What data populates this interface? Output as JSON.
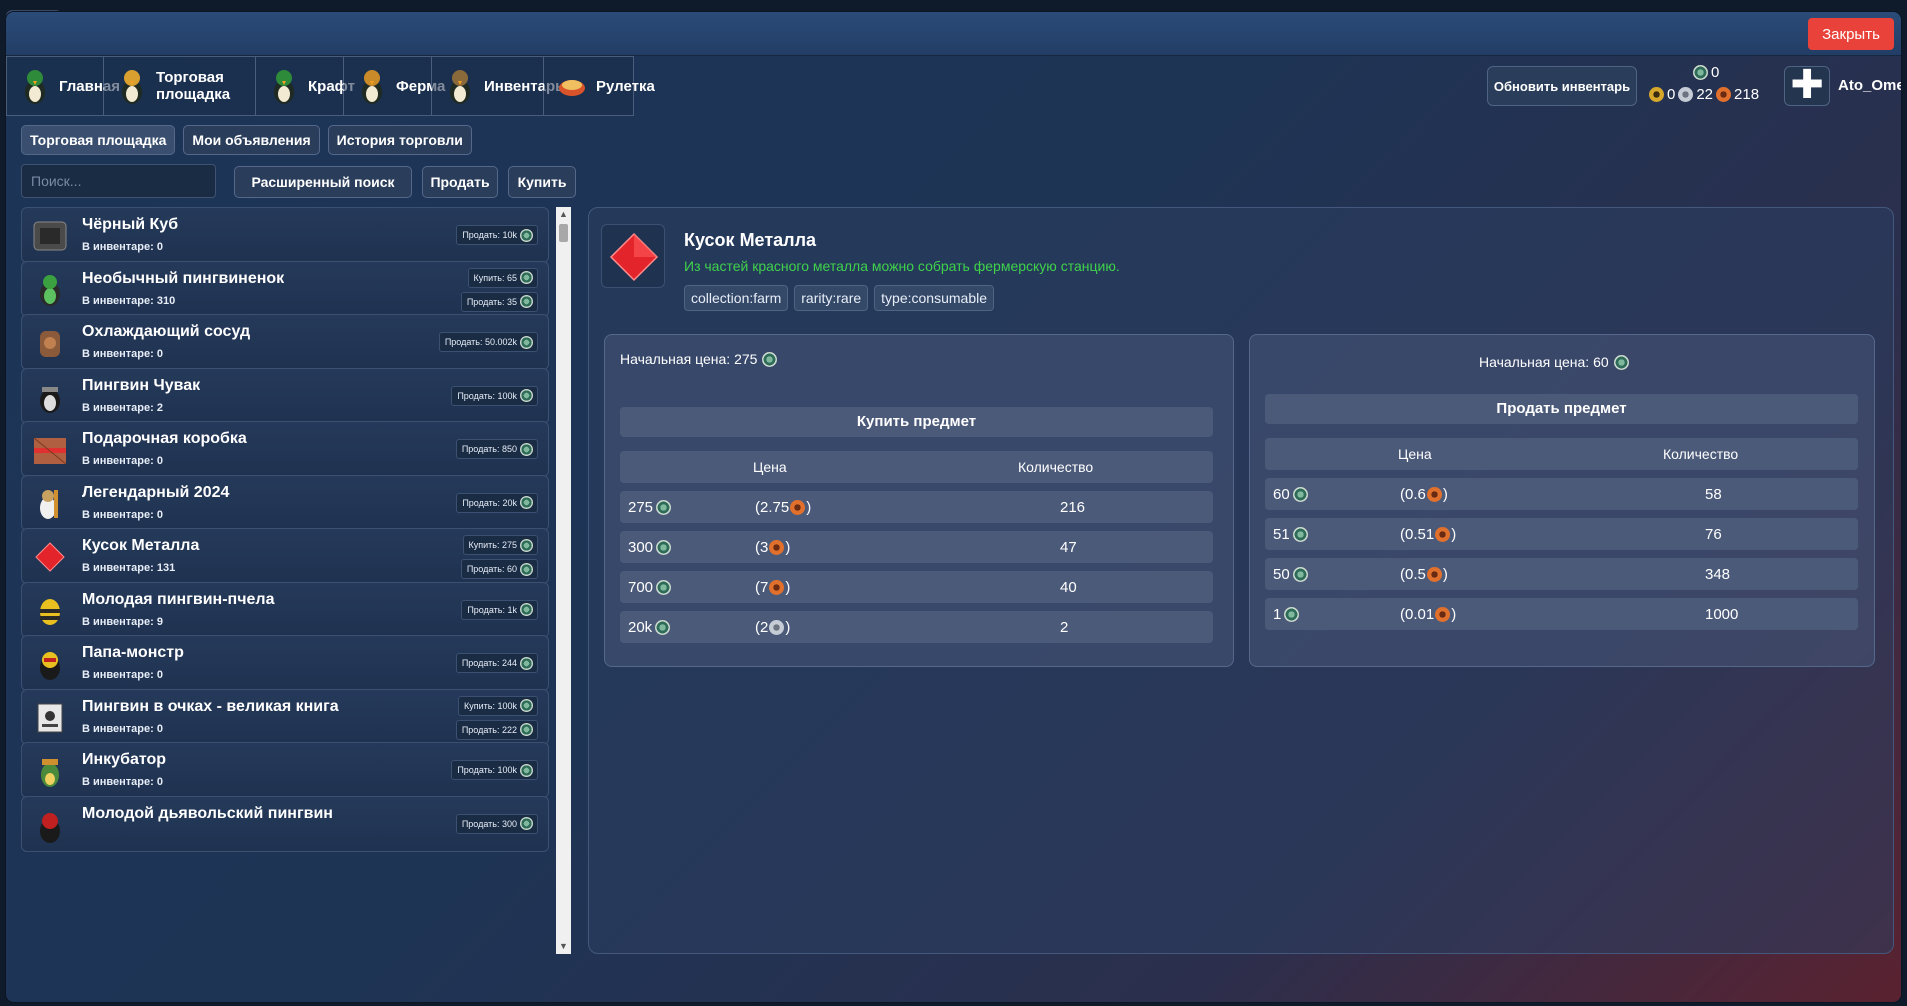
{
  "window": {
    "close_label": "Закрыть"
  },
  "nav": {
    "tabs": [
      {
        "label": "Главная",
        "icon": "penguin-home-icon"
      },
      {
        "label": "Торговая площадка",
        "icon": "penguin-market-icon"
      },
      {
        "label": "Крафт",
        "icon": "penguin-craft-icon"
      },
      {
        "label": "Ферма",
        "icon": "penguin-farm-icon"
      },
      {
        "label": "Инвентарь",
        "icon": "penguin-inventory-icon"
      },
      {
        "label": "Рулетка",
        "icon": "roulette-icon"
      }
    ],
    "refresh_label": "Обновить инвентарь",
    "currency": {
      "main": "0",
      "gold": "0",
      "silver": "22",
      "bronze": "218"
    },
    "username": "Ato_Ome"
  },
  "subtabs": [
    "Торговая площадка",
    "Мои объявления",
    "История торговли"
  ],
  "search": {
    "placeholder": "Поиск...",
    "advanced_label": "Расширенный поиск",
    "sell_label": "Продать",
    "buy_label": "Купить"
  },
  "items": [
    {
      "name": "Чёрный Куб",
      "inventory": "В инвентаре: 0",
      "buy": null,
      "sell": "Продать: 10k"
    },
    {
      "name": "Необычный пингвиненок",
      "inventory": "В инвентаре: 310",
      "buy": "Купить: 65",
      "sell": "Продать: 35"
    },
    {
      "name": "Охлаждающий сосуд",
      "inventory": "В инвентаре: 0",
      "buy": null,
      "sell": "Продать: 50.002k"
    },
    {
      "name": "Пингвин Чувак",
      "inventory": "В инвентаре: 2",
      "buy": null,
      "sell": "Продать: 100k"
    },
    {
      "name": "Подарочная коробка",
      "inventory": "В инвентаре: 0",
      "buy": null,
      "sell": "Продать: 850"
    },
    {
      "name": "Легендарный 2024",
      "inventory": "В инвентаре: 0",
      "buy": null,
      "sell": "Продать: 20k"
    },
    {
      "name": "Кусок Металла",
      "inventory": "В инвентаре: 131",
      "buy": "Купить: 275",
      "sell": "Продать: 60"
    },
    {
      "name": "Молодая пингвин-пчела",
      "inventory": "В инвентаре: 9",
      "buy": null,
      "sell": "Продать: 1k"
    },
    {
      "name": "Папа-монстр",
      "inventory": "В инвентаре: 0",
      "buy": null,
      "sell": "Продать: 244"
    },
    {
      "name": "Пингвин в очках - великая книга",
      "inventory": "В инвентаре: 0",
      "buy": "Купить: 100k",
      "sell": "Продать: 222"
    },
    {
      "name": "Инкубатор",
      "inventory": "В инвентаре: 0",
      "buy": null,
      "sell": "Продать: 100k"
    },
    {
      "name": "Молодой дьявольский пингвин",
      "inventory": "",
      "buy": null,
      "sell": "Продать: 300"
    }
  ],
  "detail": {
    "title": "Кусок Металла",
    "description": "Из частей красного металла можно собрать фермерскую станцию.",
    "tags": [
      "collection:farm",
      "rarity:rare",
      "type:consumable"
    ],
    "buy_panel": {
      "start_price_label": "Начальная цена: 275",
      "action_label": "Купить предмет",
      "col_price": "Цена",
      "col_qty": "Количество",
      "rows": [
        {
          "price": "275",
          "alt": "(2.75",
          "alt_coin": "bronze",
          "qty": "216"
        },
        {
          "price": "300",
          "alt": "(3",
          "alt_coin": "bronze",
          "qty": "47"
        },
        {
          "price": "700",
          "alt": "(7",
          "alt_coin": "bronze",
          "qty": "40"
        },
        {
          "price": "20k",
          "alt": "(2",
          "alt_coin": "silver",
          "qty": "2"
        }
      ]
    },
    "sell_panel": {
      "start_price_label": "Начальная цена: 60",
      "action_label": "Продать предмет",
      "col_price": "Цена",
      "col_qty": "Количество",
      "rows": [
        {
          "price": "60",
          "alt": "(0.6",
          "alt_coin": "bronze",
          "qty": "58"
        },
        {
          "price": "51",
          "alt": "(0.51",
          "alt_coin": "bronze",
          "qty": "76"
        },
        {
          "price": "50",
          "alt": "(0.5",
          "alt_coin": "bronze",
          "qty": "348"
        },
        {
          "price": "1",
          "alt": "(0.01",
          "alt_coin": "bronze",
          "qty": "1000"
        }
      ]
    }
  }
}
